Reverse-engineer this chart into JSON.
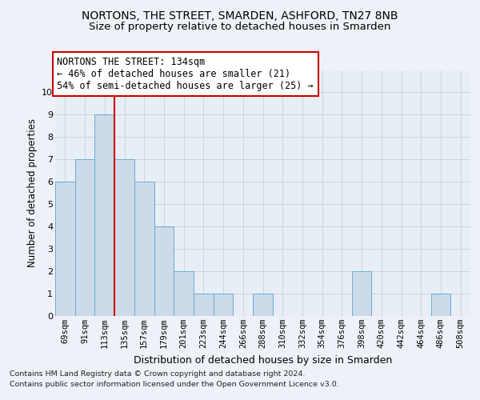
{
  "title": "NORTONS, THE STREET, SMARDEN, ASHFORD, TN27 8NB",
  "subtitle": "Size of property relative to detached houses in Smarden",
  "xlabel": "Distribution of detached houses by size in Smarden",
  "ylabel": "Number of detached properties",
  "footer_line1": "Contains HM Land Registry data © Crown copyright and database right 2024.",
  "footer_line2": "Contains public sector information licensed under the Open Government Licence v3.0.",
  "categories": [
    "69sqm",
    "91sqm",
    "113sqm",
    "135sqm",
    "157sqm",
    "179sqm",
    "201sqm",
    "223sqm",
    "244sqm",
    "266sqm",
    "288sqm",
    "310sqm",
    "332sqm",
    "354sqm",
    "376sqm",
    "398sqm",
    "420sqm",
    "442sqm",
    "464sqm",
    "486sqm",
    "508sqm"
  ],
  "values": [
    6,
    7,
    9,
    7,
    6,
    4,
    2,
    1,
    1,
    0,
    1,
    0,
    0,
    0,
    0,
    2,
    0,
    0,
    0,
    1,
    0
  ],
  "bar_color": "#ccdaea",
  "bar_edge_color": "#6aaad4",
  "highlight_bar_index": 2,
  "highlight_line_color": "#cc0000",
  "annotation_text": "NORTONS THE STREET: 134sqm\n← 46% of detached houses are smaller (21)\n54% of semi-detached houses are larger (25) →",
  "annotation_box_color": "#ffffff",
  "annotation_box_edge_color": "#cc0000",
  "ylim": [
    0,
    11
  ],
  "yticks": [
    0,
    1,
    2,
    3,
    4,
    5,
    6,
    7,
    8,
    9,
    10
  ],
  "bg_color": "#eef2f8",
  "plot_bg_color": "#e8eef5",
  "grid_color": "#c8d4e0",
  "title_fontsize": 10,
  "subtitle_fontsize": 9.5,
  "xlabel_fontsize": 9,
  "ylabel_fontsize": 8.5,
  "tick_fontsize": 7.5,
  "annotation_fontsize": 8.5
}
